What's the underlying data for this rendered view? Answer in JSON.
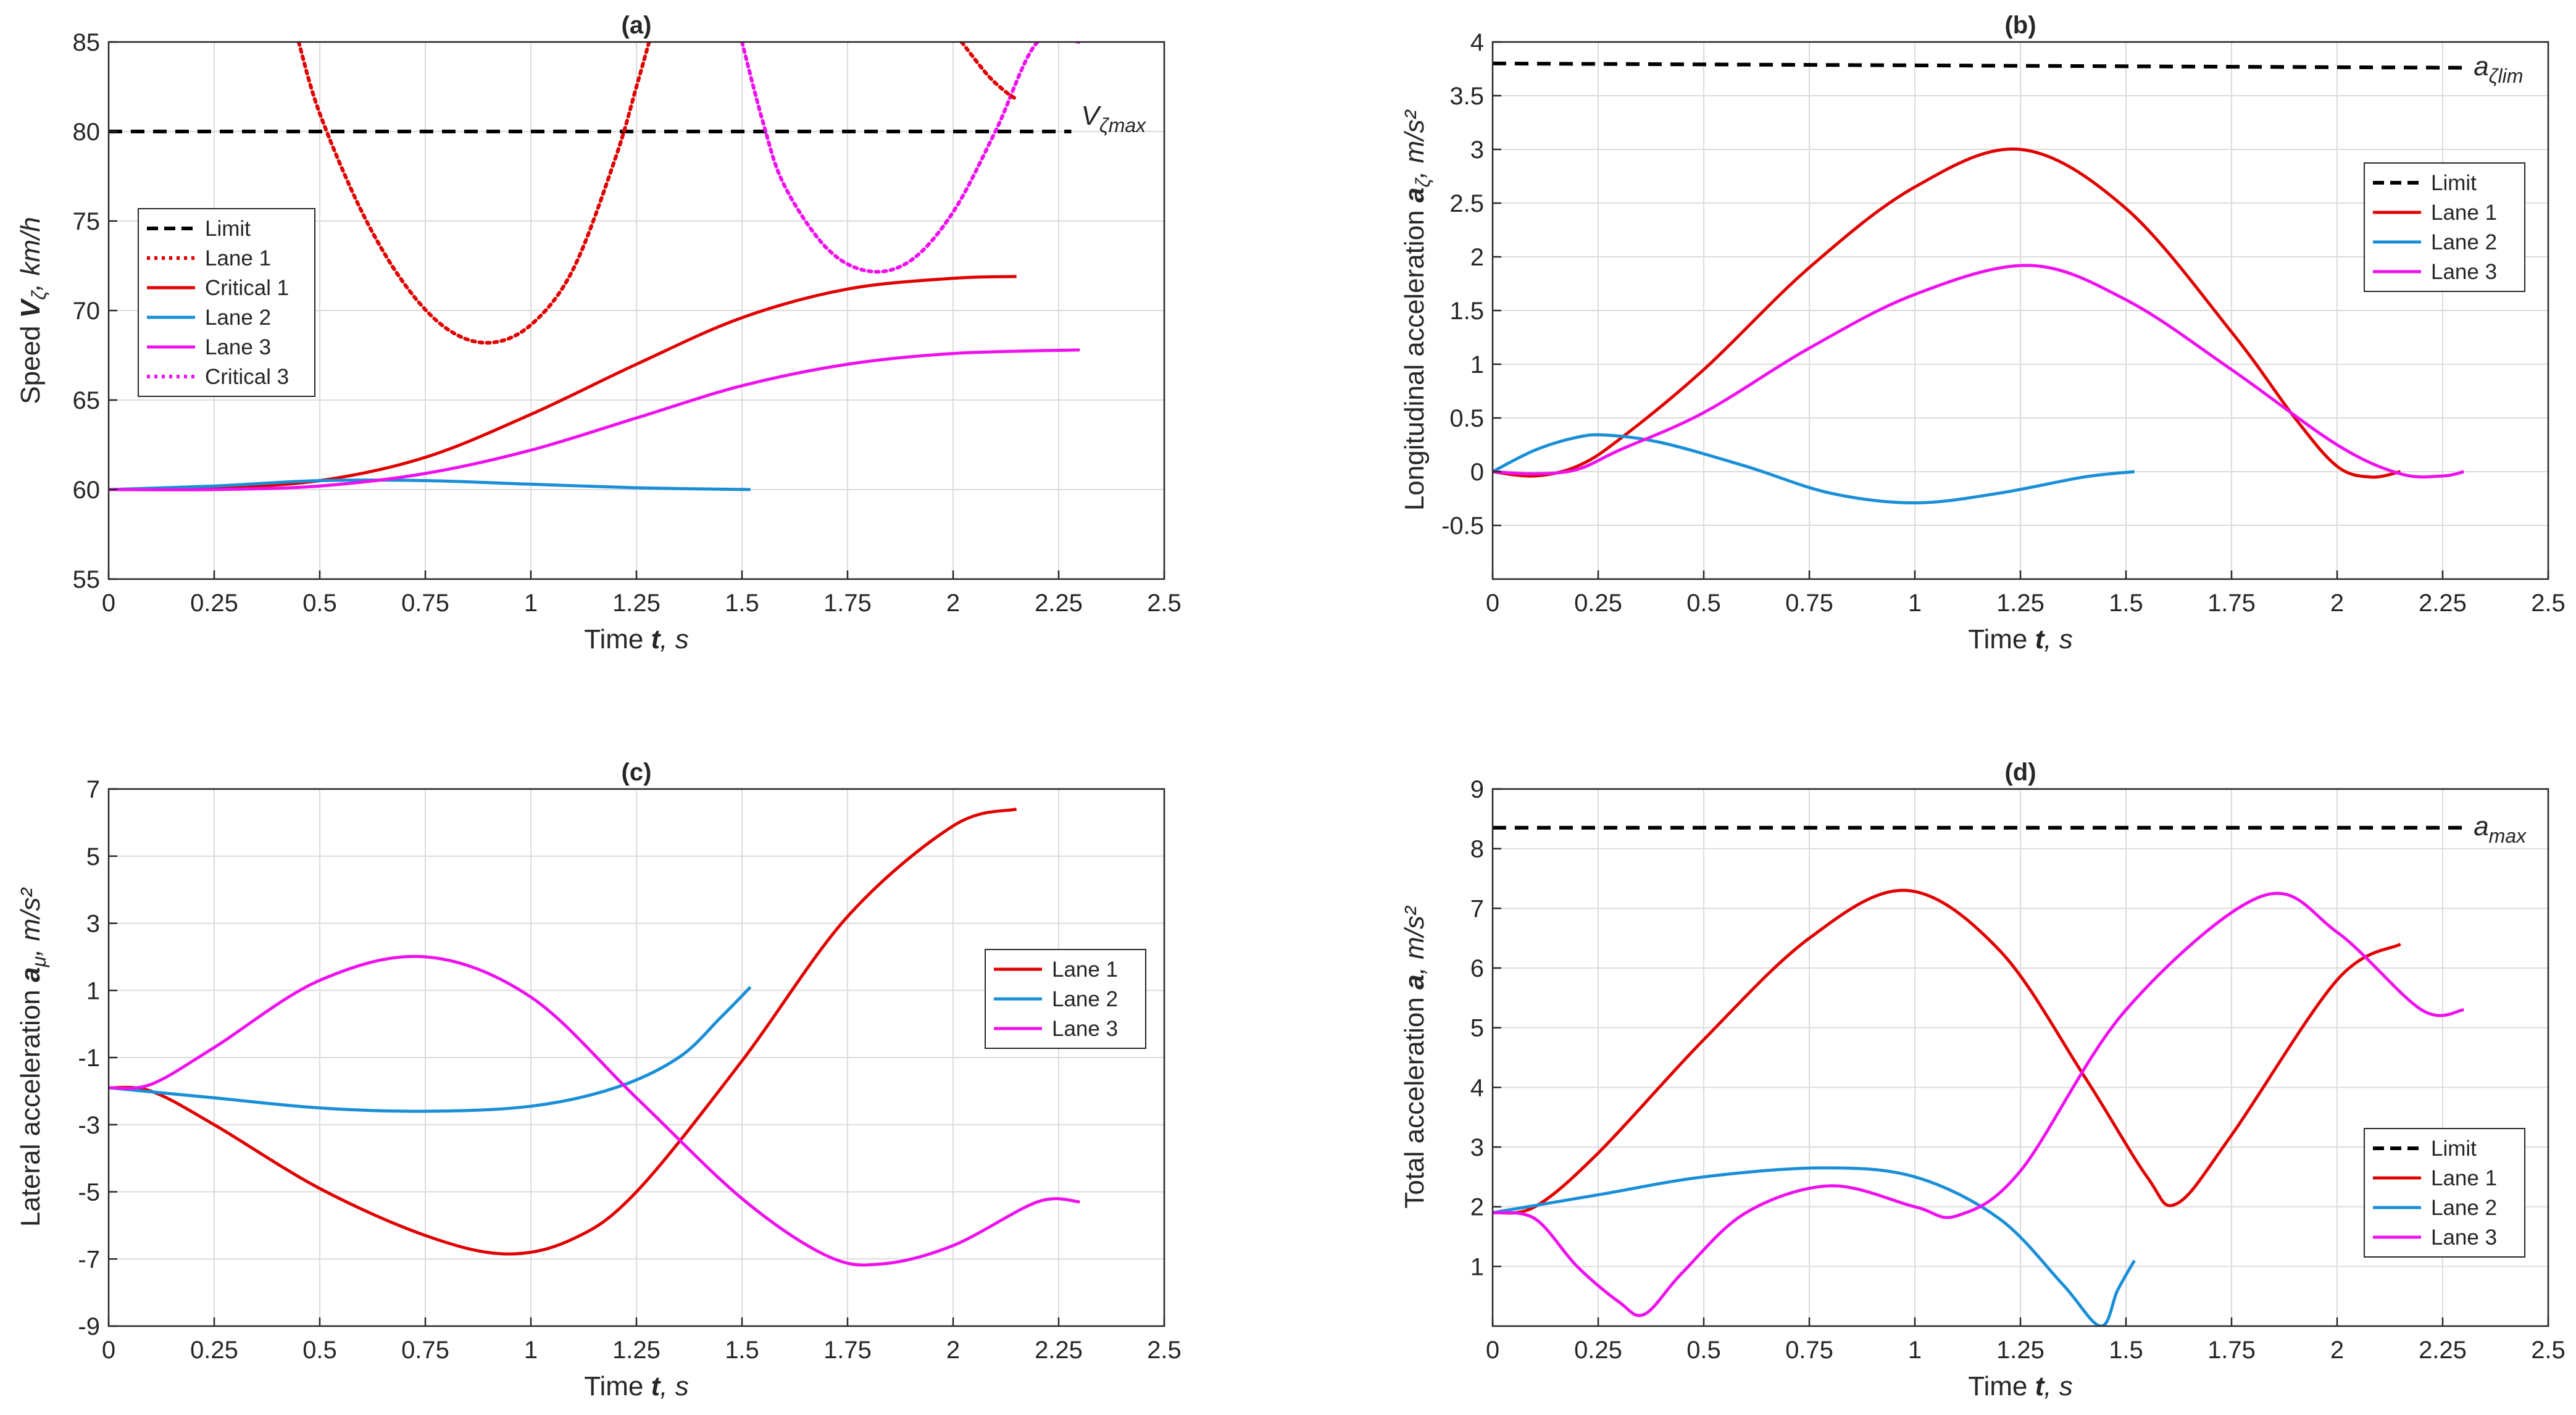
{
  "figure": {
    "description_free": true
  },
  "chart_data": [
    {
      "id": "a",
      "type": "line",
      "title": "(a)",
      "xlabel": {
        "pre": "Time ",
        "var": "t",
        "post": ", s"
      },
      "ylabel": {
        "pre": "Speed ",
        "var": "V",
        "sub": "ζ",
        "post": ", km/h"
      },
      "xlim": [
        0,
        2.5
      ],
      "ylim": [
        55,
        85
      ],
      "xticks": [
        0,
        0.25,
        0.5,
        0.75,
        1,
        1.25,
        1.5,
        1.75,
        2,
        2.25,
        2.5
      ],
      "yticks": [
        55,
        60,
        65,
        70,
        75,
        80,
        85
      ],
      "grid": true,
      "legend_position": "center-left",
      "annotation": {
        "base": "V",
        "sub": "ζmax",
        "x": 2.28,
        "y": 80.8
      },
      "series": [
        {
          "name": "Limit",
          "color": "#000000",
          "style": "dashed",
          "x": [
            0,
            2.28
          ],
          "y": [
            80,
            80
          ]
        },
        {
          "name": "Lane 1",
          "color": "#e00000",
          "style": "dotted",
          "x": [
            0.45,
            0.5,
            0.6,
            0.7,
            0.8,
            0.9,
            1.0,
            1.1,
            1.2,
            1.25,
            1.28
          ],
          "y": [
            85,
            81,
            75.5,
            71.5,
            69,
            68.2,
            69.2,
            72.3,
            78.5,
            82.5,
            85
          ]
        },
        {
          "name": "Critical 1",
          "color": "#e00000",
          "style": "solid",
          "x": [
            0,
            0.25,
            0.5,
            0.75,
            1.0,
            1.25,
            1.5,
            1.75,
            2.0,
            2.15
          ],
          "y": [
            60,
            60.1,
            60.5,
            61.8,
            64.2,
            67.0,
            69.6,
            71.2,
            71.8,
            71.9
          ]
        },
        {
          "name": "Lane 2",
          "color": "#1a8fd8",
          "style": "solid",
          "x": [
            0,
            0.25,
            0.5,
            0.75,
            1.0,
            1.25,
            1.52
          ],
          "y": [
            60,
            60.2,
            60.5,
            60.5,
            60.3,
            60.1,
            60.0
          ]
        },
        {
          "name": "Lane 3",
          "color": "#ee11ee",
          "style": "solid",
          "x": [
            0,
            0.25,
            0.5,
            0.75,
            1.0,
            1.25,
            1.5,
            1.75,
            2.0,
            2.3
          ],
          "y": [
            60,
            60.0,
            60.2,
            60.9,
            62.2,
            64.0,
            65.8,
            67.0,
            67.6,
            67.8
          ]
        },
        {
          "name": "Critical 3",
          "color": "#ee11ee",
          "style": "dotted",
          "x": [
            1.5,
            1.55,
            1.6,
            1.7,
            1.8,
            1.9,
            2.0,
            2.1,
            2.2,
            2.3
          ],
          "y": [
            85,
            80.5,
            77,
            73.5,
            72.2,
            72.8,
            75.5,
            80,
            85,
            85
          ]
        },
        {
          "name": "",
          "color": "#e00000",
          "style": "dotted",
          "x": [
            2.02,
            2.08,
            2.12,
            2.15
          ],
          "y": [
            85,
            83.2,
            82.3,
            81.8
          ]
        }
      ]
    },
    {
      "id": "b",
      "type": "line",
      "title": "(b)",
      "xlabel": {
        "pre": "Time ",
        "var": "t",
        "post": ", s"
      },
      "ylabel": {
        "pre": "Longitudinal acceleration ",
        "var": "a",
        "sub": "ζ",
        "post": ", m/s²"
      },
      "xlim": [
        0,
        2.5
      ],
      "ylim": [
        -1,
        4
      ],
      "xticks": [
        0,
        0.25,
        0.5,
        0.75,
        1,
        1.25,
        1.5,
        1.75,
        2,
        2.25,
        2.5
      ],
      "yticks": [
        -0.5,
        0,
        0.5,
        1,
        1.5,
        2,
        2.5,
        3,
        3.5,
        4
      ],
      "grid": true,
      "legend_position": "upper-right",
      "annotation": {
        "base": "a",
        "sub": "ζlim",
        "x": 2.3,
        "y": 3.76
      },
      "series": [
        {
          "name": "Limit",
          "color": "#000000",
          "style": "dashed",
          "x": [
            0,
            2.3
          ],
          "y": [
            3.8,
            3.76
          ]
        },
        {
          "name": "Lane 1",
          "color": "#e00000",
          "style": "solid",
          "x": [
            0,
            0.1,
            0.2,
            0.3,
            0.5,
            0.75,
            1.0,
            1.25,
            1.5,
            1.75,
            1.9,
            2.0,
            2.08,
            2.15
          ],
          "y": [
            0,
            -0.04,
            0.05,
            0.3,
            0.95,
            1.9,
            2.65,
            3.0,
            2.45,
            1.3,
            0.5,
            0.05,
            -0.05,
            0
          ]
        },
        {
          "name": "Lane 2",
          "color": "#1a8fd8",
          "style": "solid",
          "x": [
            0,
            0.1,
            0.2,
            0.27,
            0.4,
            0.6,
            0.8,
            1.0,
            1.2,
            1.4,
            1.52
          ],
          "y": [
            0,
            0.2,
            0.32,
            0.34,
            0.27,
            0.05,
            -0.2,
            -0.29,
            -0.2,
            -0.05,
            0
          ]
        },
        {
          "name": "Lane 3",
          "color": "#ee11ee",
          "style": "solid",
          "x": [
            0,
            0.1,
            0.2,
            0.3,
            0.5,
            0.75,
            1.0,
            1.27,
            1.5,
            1.75,
            2.0,
            2.15,
            2.25,
            2.3
          ],
          "y": [
            0,
            -0.02,
            0.02,
            0.2,
            0.55,
            1.15,
            1.65,
            1.92,
            1.6,
            0.95,
            0.25,
            -0.02,
            -0.04,
            0
          ]
        }
      ]
    },
    {
      "id": "c",
      "type": "line",
      "title": "(c)",
      "xlabel": {
        "pre": "Time ",
        "var": "t",
        "post": ", s"
      },
      "ylabel": {
        "pre": "Lateral acceleration ",
        "var": "a",
        "sub": "μ",
        "post": ", m/s²"
      },
      "xlim": [
        0,
        2.5
      ],
      "ylim": [
        -9,
        7
      ],
      "xticks": [
        0,
        0.25,
        0.5,
        0.75,
        1,
        1.25,
        1.5,
        1.75,
        2,
        2.25,
        2.5
      ],
      "yticks": [
        -9,
        -7,
        -5,
        -3,
        -1,
        1,
        3,
        5,
        7
      ],
      "grid": true,
      "legend_position": "center-right",
      "series": [
        {
          "name": "Lane 1",
          "color": "#e00000",
          "style": "solid",
          "x": [
            0,
            0.1,
            0.25,
            0.5,
            0.75,
            0.94,
            1.1,
            1.25,
            1.5,
            1.75,
            2.0,
            2.15
          ],
          "y": [
            -1.9,
            -2.0,
            -3.0,
            -4.9,
            -6.3,
            -6.85,
            -6.4,
            -5.0,
            -1.1,
            3.2,
            5.9,
            6.4
          ]
        },
        {
          "name": "Lane 2",
          "color": "#1a8fd8",
          "style": "solid",
          "x": [
            0,
            0.25,
            0.5,
            0.75,
            1.0,
            1.2,
            1.35,
            1.45,
            1.52
          ],
          "y": [
            -1.9,
            -2.2,
            -2.5,
            -2.6,
            -2.45,
            -1.9,
            -1.0,
            0.2,
            1.1
          ]
        },
        {
          "name": "Lane 3",
          "color": "#ee11ee",
          "style": "solid",
          "x": [
            0,
            0.1,
            0.25,
            0.5,
            0.75,
            1.0,
            1.25,
            1.5,
            1.7,
            1.83,
            2.0,
            2.2,
            2.3
          ],
          "y": [
            -1.9,
            -1.8,
            -0.7,
            1.3,
            2.0,
            0.8,
            -2.2,
            -5.2,
            -6.9,
            -7.15,
            -6.6,
            -5.3,
            -5.3
          ]
        }
      ]
    },
    {
      "id": "d",
      "type": "line",
      "title": "(d)",
      "xlabel": {
        "pre": "Time ",
        "var": "t",
        "post": ", s"
      },
      "ylabel": {
        "pre": "Total acceleration ",
        "var": "a",
        "sub": "",
        "post": ", m/s²"
      },
      "xlim": [
        0,
        2.5
      ],
      "ylim": [
        0,
        9
      ],
      "xticks": [
        0,
        0.25,
        0.5,
        0.75,
        1,
        1.25,
        1.5,
        1.75,
        2,
        2.25,
        2.5
      ],
      "yticks": [
        1,
        2,
        3,
        4,
        5,
        6,
        7,
        8,
        9
      ],
      "grid": true,
      "legend_position": "lower-right",
      "annotation": {
        "base": "a",
        "sub": "max",
        "x": 2.3,
        "y": 8.35
      },
      "series": [
        {
          "name": "Limit",
          "color": "#000000",
          "style": "dashed",
          "x": [
            0,
            2.3
          ],
          "y": [
            8.35,
            8.35
          ]
        },
        {
          "name": "Lane 1",
          "color": "#e00000",
          "style": "solid",
          "x": [
            0,
            0.1,
            0.25,
            0.5,
            0.75,
            0.98,
            1.2,
            1.4,
            1.55,
            1.62,
            1.75,
            2.0,
            2.15
          ],
          "y": [
            1.9,
            2.0,
            2.9,
            4.8,
            6.5,
            7.3,
            6.3,
            4.2,
            2.5,
            2.05,
            3.2,
            5.8,
            6.4
          ]
        },
        {
          "name": "Lane 2",
          "color": "#1a8fd8",
          "style": "solid",
          "x": [
            0,
            0.25,
            0.5,
            0.78,
            1.0,
            1.2,
            1.35,
            1.44,
            1.48,
            1.52
          ],
          "y": [
            1.9,
            2.2,
            2.5,
            2.65,
            2.5,
            1.8,
            0.7,
            0.0,
            0.6,
            1.1
          ]
        },
        {
          "name": "Lane 3",
          "color": "#ee11ee",
          "style": "solid",
          "x": [
            0,
            0.1,
            0.2,
            0.3,
            0.36,
            0.45,
            0.6,
            0.8,
            1.0,
            1.1,
            1.25,
            1.5,
            1.82,
            2.0,
            2.2,
            2.3
          ],
          "y": [
            1.9,
            1.8,
            1.0,
            0.4,
            0.2,
            0.9,
            1.9,
            2.35,
            2.0,
            1.85,
            2.6,
            5.3,
            7.2,
            6.6,
            5.3,
            5.3
          ]
        }
      ]
    }
  ]
}
